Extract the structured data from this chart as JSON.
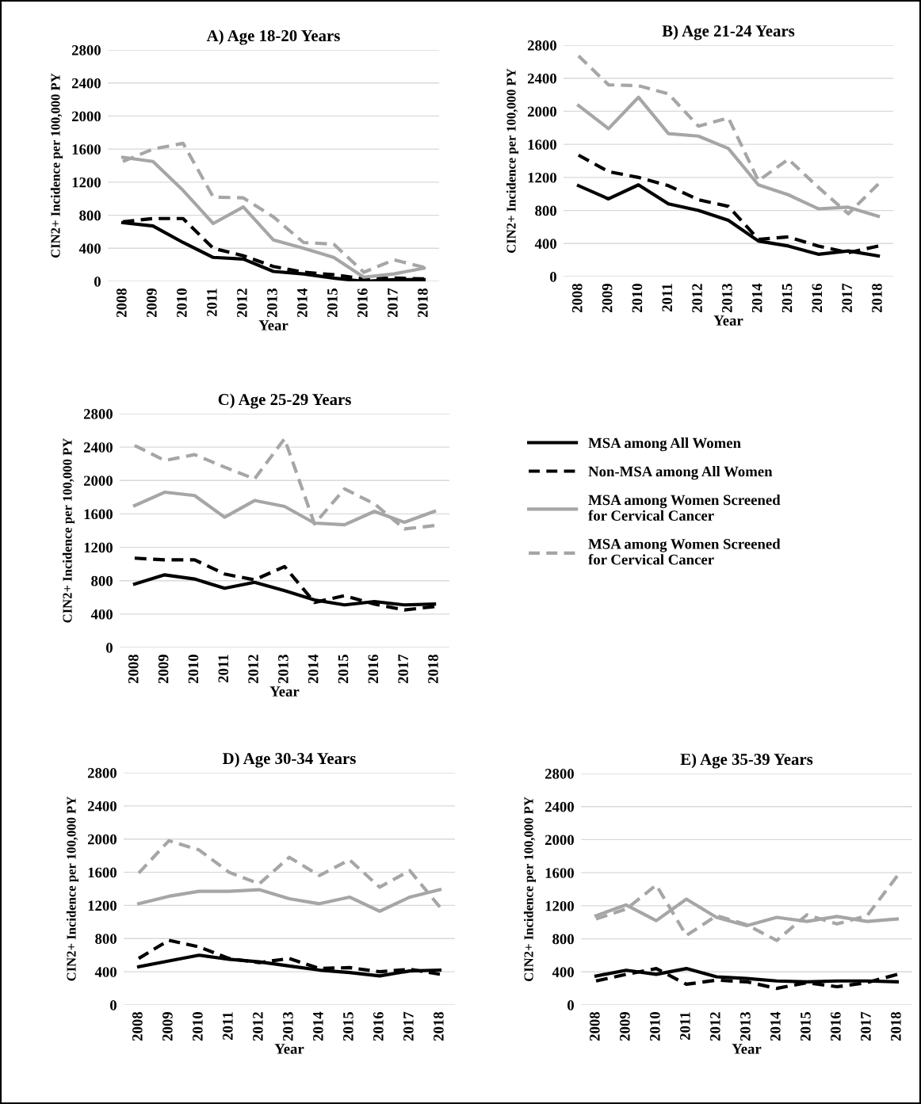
{
  "chart_data": [
    {
      "type": "line",
      "title": "A) Age 18-20 Years",
      "xlabel": "Year",
      "ylabel": "CIN2+ Incidence per 100,000 PY",
      "categories": [
        "2008",
        "2009",
        "2010",
        "2011",
        "2012",
        "2013",
        "2014",
        "2015",
        "2016",
        "2017",
        "2018"
      ],
      "ylim": [
        0,
        2800
      ],
      "yticks": [
        0,
        400,
        800,
        1200,
        1600,
        2000,
        2400,
        2800
      ],
      "grid": "y",
      "series": [
        {
          "color": "#000000",
          "line_style": "solid",
          "values": [
            710,
            670,
            470,
            290,
            270,
            120,
            90,
            40,
            0,
            20,
            20
          ]
        },
        {
          "color": "#000000",
          "line_style": "dashed",
          "values": [
            720,
            760,
            760,
            400,
            310,
            180,
            110,
            80,
            30,
            40,
            30
          ]
        },
        {
          "color": "#a6a6a6",
          "line_style": "solid",
          "values": [
            1500,
            1450,
            1100,
            700,
            900,
            500,
            400,
            290,
            50,
            90,
            160
          ]
        },
        {
          "color": "#a6a6a6",
          "line_style": "dashed",
          "values": [
            1450,
            1600,
            1670,
            1020,
            1010,
            780,
            470,
            450,
            110,
            260,
            170
          ]
        }
      ]
    },
    {
      "type": "line",
      "title": "B) Age 21-24 Years",
      "xlabel": "Year",
      "ylabel": "CIN2+ Incidence per 100,000 PY",
      "categories": [
        "2008",
        "2009",
        "2010",
        "2011",
        "2012",
        "2013",
        "2014",
        "2015",
        "2016",
        "2017",
        "2018"
      ],
      "ylim": [
        0,
        2800
      ],
      "yticks": [
        0,
        400,
        800,
        1200,
        1600,
        2000,
        2400,
        2800
      ],
      "grid": "y",
      "series": [
        {
          "color": "#000000",
          "line_style": "solid",
          "values": [
            1100,
            940,
            1110,
            880,
            800,
            680,
            430,
            370,
            270,
            310,
            250
          ]
        },
        {
          "color": "#000000",
          "line_style": "dashed",
          "values": [
            1470,
            1270,
            1200,
            1100,
            930,
            850,
            450,
            480,
            370,
            290,
            370
          ]
        },
        {
          "color": "#a6a6a6",
          "line_style": "solid",
          "values": [
            2070,
            1790,
            2170,
            1730,
            1700,
            1550,
            1110,
            990,
            820,
            840,
            730
          ]
        },
        {
          "color": "#a6a6a6",
          "line_style": "dashed",
          "values": [
            2670,
            2320,
            2310,
            2210,
            1820,
            1920,
            1160,
            1420,
            1080,
            760,
            1120
          ]
        }
      ]
    },
    {
      "type": "line",
      "title": "C) Age 25-29 Years",
      "xlabel": "Year",
      "ylabel": "CIN2+ Incidence per 100,000 PY",
      "categories": [
        "2008",
        "2009",
        "2010",
        "2011",
        "2012",
        "2013",
        "2014",
        "2015",
        "2016",
        "2017",
        "2018"
      ],
      "ylim": [
        0,
        2800
      ],
      "yticks": [
        0,
        400,
        800,
        1200,
        1600,
        2000,
        2400,
        2800
      ],
      "grid": "y",
      "legend": "right",
      "series": [
        {
          "name": "MSA among All Women",
          "color": "#000000",
          "line_style": "solid",
          "values": [
            760,
            870,
            820,
            710,
            780,
            680,
            570,
            510,
            550,
            510,
            520
          ]
        },
        {
          "name": "Non-MSA among All Women",
          "color": "#000000",
          "line_style": "dashed",
          "values": [
            1070,
            1050,
            1050,
            880,
            810,
            970,
            540,
            620,
            520,
            450,
            490
          ]
        },
        {
          "name": "MSA among Women Screened\nfor Cervical Cancer",
          "color": "#a6a6a6",
          "line_style": "solid",
          "values": [
            1700,
            1860,
            1820,
            1560,
            1760,
            1690,
            1490,
            1470,
            1630,
            1500,
            1630
          ]
        },
        {
          "name": "MSA among Women Screened\nfor Cervical Cancer",
          "color": "#a6a6a6",
          "line_style": "dashed",
          "values": [
            2420,
            2240,
            2310,
            2160,
            2020,
            2500,
            1480,
            1900,
            1720,
            1420,
            1460
          ]
        }
      ]
    },
    {
      "type": "line",
      "title": "D) Age 30-34 Years",
      "xlabel": "Year",
      "ylabel": "CIN2+ Incidence per 100,000 PY",
      "categories": [
        "2008",
        "2009",
        "2010",
        "2011",
        "2012",
        "2013",
        "2014",
        "2015",
        "2016",
        "2017",
        "2018"
      ],
      "ylim": [
        0,
        2800
      ],
      "yticks": [
        0,
        400,
        800,
        1200,
        1600,
        2000,
        2400,
        2800
      ],
      "grid": "y",
      "series": [
        {
          "color": "#000000",
          "line_style": "solid",
          "values": [
            460,
            530,
            600,
            550,
            520,
            470,
            420,
            390,
            350,
            410,
            420
          ]
        },
        {
          "color": "#000000",
          "line_style": "dashed",
          "values": [
            560,
            780,
            700,
            560,
            510,
            560,
            440,
            450,
            400,
            430,
            370
          ]
        },
        {
          "color": "#a6a6a6",
          "line_style": "solid",
          "values": [
            1220,
            1310,
            1370,
            1370,
            1390,
            1280,
            1220,
            1300,
            1130,
            1300,
            1390
          ]
        },
        {
          "color": "#a6a6a6",
          "line_style": "dashed",
          "values": [
            1590,
            1980,
            1870,
            1600,
            1460,
            1780,
            1560,
            1750,
            1420,
            1620,
            1180
          ]
        }
      ]
    },
    {
      "type": "line",
      "title": "E) Age 35-39 Years",
      "xlabel": "Year",
      "ylabel": "CIN2+ Incidence per 100,000 PY",
      "categories": [
        "2008",
        "2009",
        "2010",
        "2011",
        "2012",
        "2013",
        "2014",
        "2015",
        "2016",
        "2017",
        "2018"
      ],
      "ylim": [
        0,
        2800
      ],
      "yticks": [
        0,
        400,
        800,
        1200,
        1600,
        2000,
        2400,
        2800
      ],
      "grid": "y",
      "series": [
        {
          "color": "#000000",
          "line_style": "solid",
          "values": [
            350,
            420,
            370,
            440,
            340,
            320,
            290,
            280,
            290,
            290,
            280
          ]
        },
        {
          "color": "#000000",
          "line_style": "dashed",
          "values": [
            290,
            370,
            440,
            250,
            300,
            280,
            200,
            270,
            220,
            270,
            370
          ]
        },
        {
          "color": "#a6a6a6",
          "line_style": "solid",
          "values": [
            1080,
            1210,
            1020,
            1280,
            1060,
            960,
            1060,
            1010,
            1070,
            1010,
            1040
          ]
        },
        {
          "color": "#a6a6a6",
          "line_style": "dashed",
          "values": [
            1040,
            1160,
            1450,
            840,
            1080,
            970,
            780,
            1090,
            980,
            1080,
            1560
          ]
        }
      ]
    }
  ]
}
